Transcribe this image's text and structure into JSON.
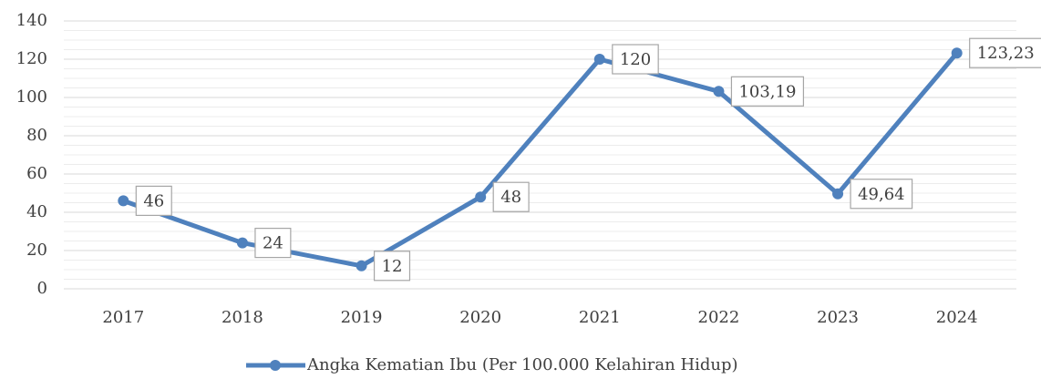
{
  "chart_data": {
    "type": "line",
    "categories": [
      "2017",
      "2018",
      "2019",
      "2020",
      "2021",
      "2022",
      "2023",
      "2024"
    ],
    "series": [
      {
        "name": "Angka Kematian Ibu (Per 100.000 Kelahiran Hidup)",
        "color": "#4f81bd",
        "values": [
          46,
          24,
          12,
          48,
          120,
          103.19,
          49.64,
          123.23
        ],
        "value_labels": [
          "46",
          "24",
          "12",
          "48",
          "120",
          "103,19",
          "49,64",
          "123,23"
        ]
      }
    ],
    "ylim": [
      0,
      140
    ],
    "yticks": [
      0,
      20,
      40,
      60,
      80,
      100,
      120,
      140
    ],
    "grid": true,
    "legend": "bottom"
  }
}
